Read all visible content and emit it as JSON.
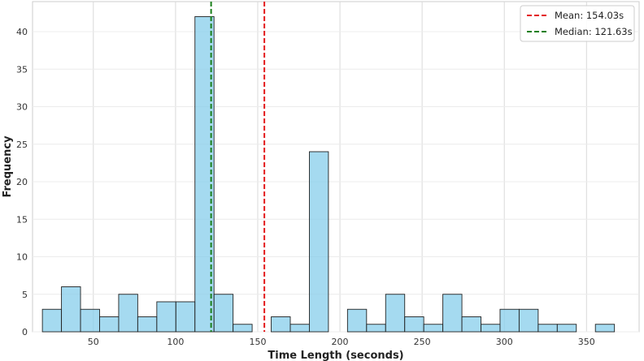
{
  "chart_data": {
    "type": "bar",
    "title": "",
    "xlabel": "Time Length (seconds)",
    "ylabel": "Frequency",
    "xlim": [
      13,
      382
    ],
    "ylim": [
      0,
      44
    ],
    "x_ticks": [
      50,
      100,
      150,
      200,
      250,
      300,
      350
    ],
    "y_ticks": [
      0,
      5,
      10,
      15,
      20,
      25,
      30,
      35,
      40
    ],
    "grid": true,
    "bin_width": 11.6,
    "bins": [
      {
        "start": 19.0,
        "count": 3
      },
      {
        "start": 30.6,
        "count": 6
      },
      {
        "start": 42.2,
        "count": 3
      },
      {
        "start": 53.8,
        "count": 2
      },
      {
        "start": 65.4,
        "count": 5
      },
      {
        "start": 77.0,
        "count": 2
      },
      {
        "start": 88.6,
        "count": 4
      },
      {
        "start": 100.2,
        "count": 4
      },
      {
        "start": 111.8,
        "count": 42
      },
      {
        "start": 123.4,
        "count": 5
      },
      {
        "start": 135.0,
        "count": 1
      },
      {
        "start": 146.6,
        "count": 0
      },
      {
        "start": 158.2,
        "count": 2
      },
      {
        "start": 169.8,
        "count": 1
      },
      {
        "start": 181.4,
        "count": 24
      },
      {
        "start": 193.0,
        "count": 0
      },
      {
        "start": 204.6,
        "count": 3
      },
      {
        "start": 216.2,
        "count": 1
      },
      {
        "start": 227.8,
        "count": 5
      },
      {
        "start": 239.4,
        "count": 2
      },
      {
        "start": 251.0,
        "count": 1
      },
      {
        "start": 262.6,
        "count": 5
      },
      {
        "start": 274.2,
        "count": 2
      },
      {
        "start": 285.8,
        "count": 1
      },
      {
        "start": 297.4,
        "count": 3
      },
      {
        "start": 309.0,
        "count": 3
      },
      {
        "start": 320.6,
        "count": 1
      },
      {
        "start": 332.2,
        "count": 1
      },
      {
        "start": 343.8,
        "count": 0
      },
      {
        "start": 355.4,
        "count": 1
      }
    ],
    "bar_color": "#87ceeb",
    "bar_edge_color": "#222222",
    "reference_lines": [
      {
        "label": "Mean: 154.03s",
        "value": 154.03,
        "color": "#e31a1c",
        "style": "dashed"
      },
      {
        "label": "Median: 121.63s",
        "value": 121.63,
        "color": "#1a7f1a",
        "style": "dashed"
      }
    ],
    "legend_position": "top-right"
  }
}
